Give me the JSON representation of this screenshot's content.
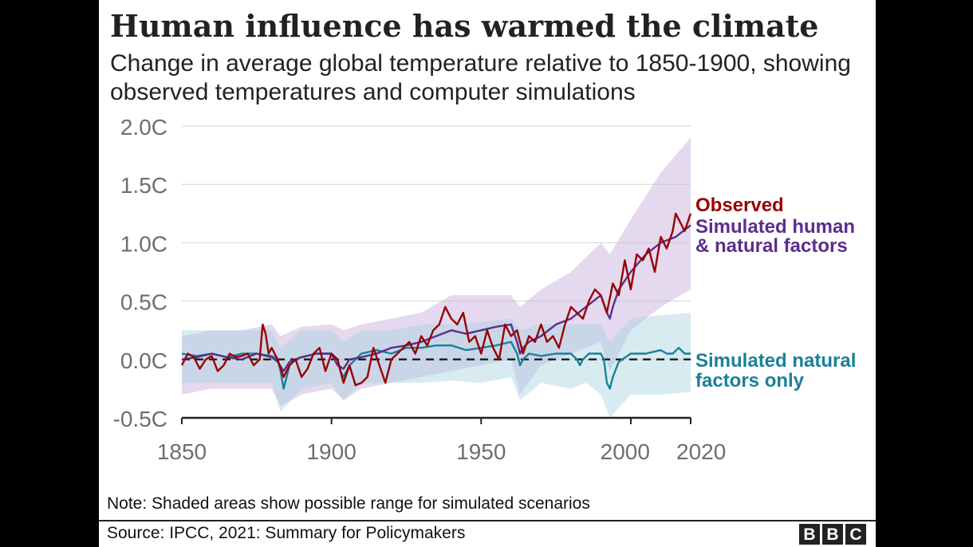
{
  "title": "Human influence has warmed the climate",
  "subtitle": "Change in average global temperature relative to 1850-1900, showing observed temperatures and computer simulations",
  "note": "Note: Shaded areas show possible range for simulated scenarios",
  "source": "Source: IPCC, 2021: Summary for Policymakers",
  "logo_letters": [
    "B",
    "B",
    "C"
  ],
  "chart_data": {
    "type": "line",
    "title": "Human influence has warmed the climate",
    "xlabel": "",
    "ylabel": "",
    "xlim": [
      1850,
      2020
    ],
    "ylim": [
      -0.5,
      2.0
    ],
    "x_ticks": [
      1850,
      1900,
      1950,
      2000,
      2020
    ],
    "x_tick_labels": [
      "1850",
      "1900",
      "1950",
      "2000",
      "2020"
    ],
    "y_ticks": [
      -0.5,
      0.0,
      0.5,
      1.0,
      1.5,
      2.0
    ],
    "y_tick_labels": [
      "-0.5C",
      "0.0C",
      "0.5C",
      "1.0C",
      "1.5C",
      "2.0C"
    ],
    "grid": true,
    "zero_line": "dashed",
    "legend_entries": [
      {
        "label": "Observed",
        "color": "#990000"
      },
      {
        "label": "Simulated human & natural factors",
        "line1": "Simulated human",
        "line2": "& natural factors",
        "color": "#5c2d8c"
      },
      {
        "label": "Simulated natural factors only",
        "line1": "Simulated natural",
        "line2": "factors only",
        "color": "#1a8099"
      }
    ],
    "series": [
      {
        "name": "Observed",
        "color": "#990000",
        "x": [
          1850,
          1852,
          1854,
          1856,
          1858,
          1860,
          1862,
          1864,
          1866,
          1868,
          1870,
          1872,
          1874,
          1876,
          1877,
          1878,
          1879,
          1880,
          1882,
          1884,
          1886,
          1888,
          1890,
          1892,
          1894,
          1896,
          1898,
          1900,
          1902,
          1904,
          1906,
          1908,
          1910,
          1912,
          1914,
          1916,
          1918,
          1920,
          1922,
          1924,
          1926,
          1928,
          1930,
          1932,
          1934,
          1936,
          1938,
          1940,
          1942,
          1944,
          1946,
          1948,
          1950,
          1952,
          1954,
          1956,
          1958,
          1960,
          1962,
          1964,
          1966,
          1968,
          1970,
          1972,
          1974,
          1976,
          1978,
          1980,
          1982,
          1984,
          1986,
          1988,
          1990,
          1992,
          1994,
          1996,
          1998,
          2000,
          2002,
          2004,
          2006,
          2008,
          2010,
          2012,
          2014,
          2015,
          2016,
          2018,
          2020
        ],
        "y": [
          -0.05,
          0.05,
          0.02,
          -0.08,
          0.0,
          0.03,
          -0.1,
          -0.05,
          0.05,
          0.02,
          0.03,
          0.05,
          -0.05,
          0.0,
          0.3,
          0.22,
          0.05,
          0.1,
          0.0,
          -0.15,
          -0.05,
          0.0,
          -0.15,
          -0.08,
          0.05,
          0.1,
          -0.1,
          0.05,
          0.0,
          -0.2,
          -0.05,
          -0.22,
          -0.2,
          -0.15,
          0.1,
          -0.05,
          -0.2,
          0.0,
          0.05,
          0.1,
          0.15,
          0.05,
          0.2,
          0.12,
          0.25,
          0.3,
          0.45,
          0.35,
          0.3,
          0.4,
          0.15,
          0.2,
          0.05,
          0.25,
          0.1,
          0.0,
          0.3,
          0.2,
          0.25,
          0.05,
          0.2,
          0.15,
          0.3,
          0.15,
          0.2,
          0.1,
          0.3,
          0.45,
          0.4,
          0.35,
          0.5,
          0.6,
          0.55,
          0.4,
          0.65,
          0.55,
          0.85,
          0.6,
          0.9,
          0.85,
          0.95,
          0.75,
          1.05,
          0.95,
          1.1,
          1.25,
          1.2,
          1.1,
          1.25
        ]
      },
      {
        "name": "Simulated human & natural factors",
        "color": "#5c2d8c",
        "x": [
          1850,
          1855,
          1860,
          1865,
          1870,
          1875,
          1880,
          1882,
          1884,
          1886,
          1890,
          1895,
          1900,
          1902,
          1904,
          1906,
          1910,
          1915,
          1920,
          1925,
          1930,
          1935,
          1940,
          1945,
          1950,
          1955,
          1960,
          1962,
          1963,
          1964,
          1966,
          1970,
          1975,
          1980,
          1985,
          1990,
          1992,
          1993,
          1994,
          1996,
          2000,
          2005,
          2010,
          2015,
          2020
        ],
        "y": [
          0.0,
          0.02,
          0.05,
          0.02,
          0.0,
          0.05,
          0.02,
          -0.02,
          -0.1,
          -0.02,
          0.02,
          0.05,
          0.05,
          -0.05,
          -0.08,
          0.0,
          0.02,
          0.05,
          0.1,
          0.12,
          0.15,
          0.2,
          0.25,
          0.22,
          0.25,
          0.28,
          0.3,
          0.15,
          0.05,
          0.1,
          0.15,
          0.2,
          0.3,
          0.35,
          0.45,
          0.55,
          0.4,
          0.35,
          0.45,
          0.6,
          0.75,
          0.9,
          1.0,
          1.05,
          1.15
        ]
      },
      {
        "name": "Simulated natural factors only",
        "color": "#1a8099",
        "x": [
          1850,
          1855,
          1860,
          1865,
          1870,
          1875,
          1880,
          1882,
          1883,
          1884,
          1885,
          1886,
          1888,
          1890,
          1895,
          1900,
          1902,
          1903,
          1904,
          1906,
          1910,
          1915,
          1920,
          1925,
          1930,
          1935,
          1940,
          1945,
          1950,
          1955,
          1960,
          1962,
          1963,
          1964,
          1966,
          1970,
          1975,
          1980,
          1982,
          1983,
          1984,
          1986,
          1990,
          1991,
          1992,
          1993,
          1994,
          1996,
          2000,
          2005,
          2010,
          2012,
          2014,
          2016,
          2018,
          2020
        ],
        "y": [
          0.05,
          0.03,
          0.05,
          0.02,
          0.05,
          0.05,
          0.03,
          0.0,
          -0.1,
          -0.25,
          -0.15,
          -0.05,
          0.0,
          0.02,
          0.05,
          0.05,
          0.0,
          -0.1,
          -0.15,
          -0.05,
          0.05,
          0.08,
          0.05,
          0.1,
          0.1,
          0.12,
          0.12,
          0.08,
          0.1,
          0.12,
          0.15,
          0.05,
          -0.05,
          0.0,
          0.05,
          0.03,
          0.05,
          0.05,
          0.0,
          -0.05,
          0.0,
          0.05,
          0.05,
          0.0,
          -0.2,
          -0.25,
          -0.15,
          -0.02,
          0.05,
          0.05,
          0.08,
          0.05,
          0.05,
          0.1,
          0.05,
          0.05
        ]
      }
    ],
    "bands": [
      {
        "name": "Simulated human & natural factors range",
        "color": "#c9b3dd",
        "x": [
          1850,
          1860,
          1870,
          1880,
          1883,
          1890,
          1900,
          1904,
          1910,
          1920,
          1930,
          1940,
          1950,
          1960,
          1963,
          1970,
          1980,
          1990,
          1993,
          2000,
          2010,
          2020
        ],
        "low": [
          -0.3,
          -0.25,
          -0.25,
          -0.25,
          -0.4,
          -0.3,
          -0.25,
          -0.35,
          -0.25,
          -0.2,
          -0.15,
          -0.1,
          -0.05,
          0.0,
          -0.3,
          -0.05,
          0.05,
          0.15,
          -0.1,
          0.25,
          0.45,
          0.6
        ],
        "high": [
          0.2,
          0.25,
          0.25,
          0.3,
          0.2,
          0.28,
          0.3,
          0.25,
          0.3,
          0.35,
          0.4,
          0.55,
          0.55,
          0.55,
          0.45,
          0.6,
          0.75,
          1.0,
          0.9,
          1.2,
          1.6,
          1.9
        ]
      },
      {
        "name": "Simulated natural factors range",
        "color": "#a9d3de",
        "x": [
          1850,
          1860,
          1870,
          1880,
          1883,
          1890,
          1900,
          1904,
          1910,
          1920,
          1930,
          1940,
          1950,
          1960,
          1963,
          1970,
          1980,
          1985,
          1990,
          1993,
          2000,
          2010,
          2020
        ],
        "low": [
          -0.2,
          -0.2,
          -0.2,
          -0.2,
          -0.45,
          -0.25,
          -0.2,
          -0.35,
          -0.2,
          -0.2,
          -0.2,
          -0.18,
          -0.2,
          -0.15,
          -0.35,
          -0.2,
          -0.25,
          -0.2,
          -0.3,
          -0.5,
          -0.3,
          -0.3,
          -0.28
        ],
        "high": [
          0.25,
          0.25,
          0.25,
          0.25,
          0.1,
          0.25,
          0.25,
          0.15,
          0.25,
          0.25,
          0.3,
          0.3,
          0.32,
          0.35,
          0.25,
          0.3,
          0.3,
          0.3,
          0.3,
          0.15,
          0.35,
          0.38,
          0.4
        ]
      }
    ]
  }
}
